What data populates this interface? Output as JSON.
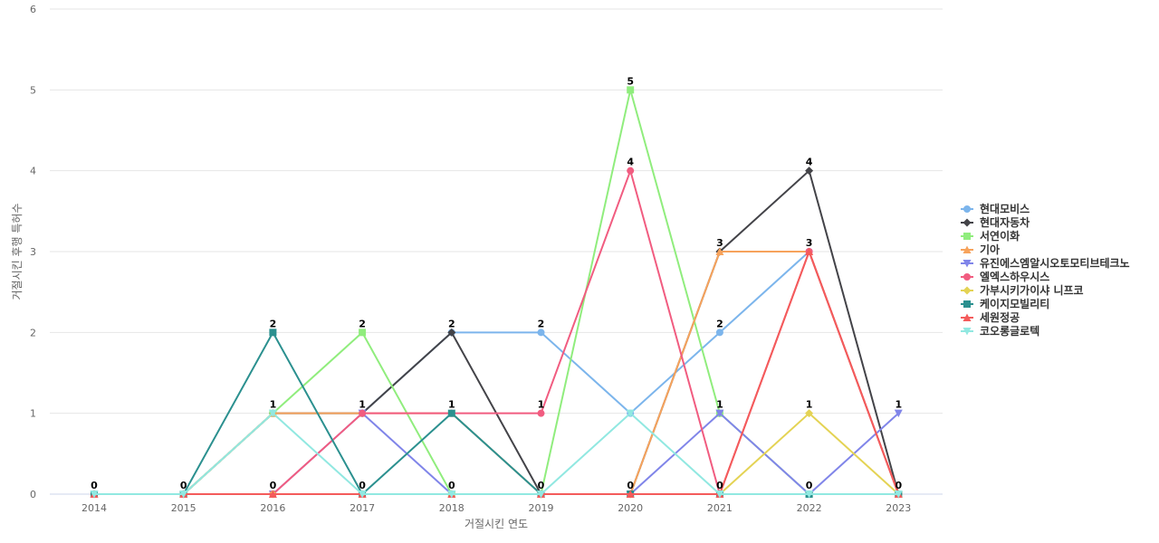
{
  "chart_data": {
    "type": "line",
    "title": "",
    "xlabel": "거절시킨 연도",
    "ylabel": "거절시킨 후행 특허수",
    "categories": [
      "2014",
      "2015",
      "2016",
      "2017",
      "2018",
      "2019",
      "2020",
      "2021",
      "2022",
      "2023"
    ],
    "yticks": [
      "0",
      "1",
      "2",
      "3",
      "4",
      "5",
      "6"
    ],
    "ylim": [
      0,
      6
    ],
    "grid": true,
    "legend_position": "right",
    "series": [
      {
        "name": "현대모비스",
        "color": "#7cb5ec",
        "marker": "circle",
        "values": [
          0,
          0,
          1,
          1,
          2,
          2,
          1,
          2,
          3,
          0
        ]
      },
      {
        "name": "현대자동차",
        "color": "#434348",
        "marker": "diamond",
        "values": [
          0,
          0,
          1,
          1,
          2,
          0,
          0,
          3,
          4,
          0
        ]
      },
      {
        "name": "서연이화",
        "color": "#90ed7d",
        "marker": "square",
        "values": [
          0,
          0,
          1,
          2,
          0,
          0,
          5,
          1,
          0,
          0
        ]
      },
      {
        "name": "기아",
        "color": "#f7a35c",
        "marker": "triangle",
        "values": [
          0,
          0,
          1,
          1,
          1,
          0,
          0,
          3,
          3,
          0
        ]
      },
      {
        "name": "유진에스엠알시오토모티브테크노",
        "color": "#8085e9",
        "marker": "triangle-down",
        "values": [
          0,
          0,
          0,
          1,
          0,
          0,
          0,
          1,
          0,
          1
        ]
      },
      {
        "name": "엘엑스하우시스",
        "color": "#f15c80",
        "marker": "circle",
        "values": [
          0,
          0,
          0,
          1,
          1,
          1,
          4,
          0,
          3,
          0
        ]
      },
      {
        "name": "가부시키가이샤 니프코",
        "color": "#e4d354",
        "marker": "diamond",
        "values": [
          0,
          0,
          0,
          0,
          0,
          0,
          0,
          0,
          1,
          0
        ]
      },
      {
        "name": "케이지모빌리티",
        "color": "#2b908f",
        "marker": "square",
        "values": [
          0,
          0,
          2,
          0,
          1,
          0,
          0,
          0,
          0,
          0
        ]
      },
      {
        "name": "세원정공",
        "color": "#f45b5b",
        "marker": "triangle",
        "values": [
          0,
          0,
          0,
          0,
          0,
          0,
          0,
          0,
          3,
          0
        ]
      },
      {
        "name": "코오롱글로텍",
        "color": "#91e8e1",
        "marker": "triangle-down",
        "values": [
          0,
          0,
          1,
          0,
          0,
          0,
          1,
          0,
          0,
          0
        ]
      }
    ],
    "data_labels": [
      "0",
      "0",
      "2",
      "2",
      "2",
      "2",
      "5",
      "3",
      "4",
      "0"
    ],
    "data_labels_low": [
      "",
      "",
      "1",
      "1",
      "1",
      "1",
      "4",
      "2",
      "3",
      "1"
    ],
    "data_labels_mid": [
      "",
      "",
      "0",
      "0",
      "0",
      "0",
      "0",
      "1",
      "1",
      ""
    ],
    "data_labels_bottom": [
      "",
      "",
      "",
      "",
      "",
      "",
      "",
      "0",
      "0",
      ""
    ]
  }
}
